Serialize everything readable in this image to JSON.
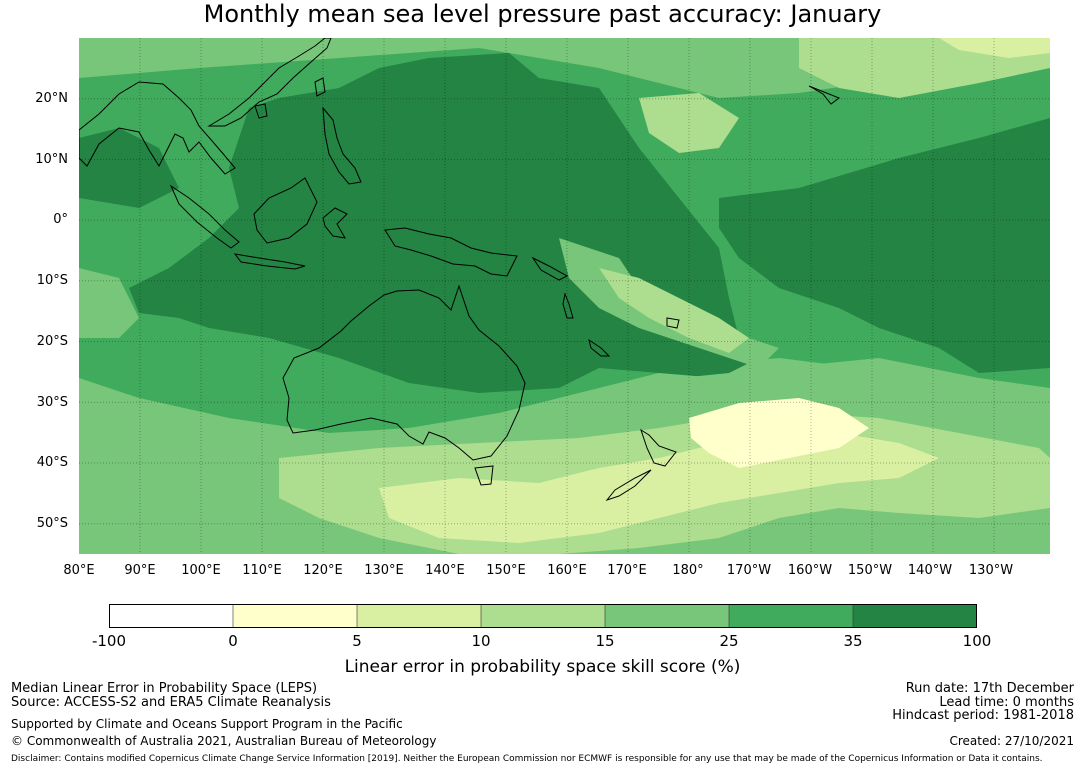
{
  "title": "Monthly mean sea level pressure past accuracy: January",
  "map": {
    "lat_labels": [
      "20°N",
      "10°N",
      "0°",
      "10°S",
      "20°S",
      "30°S",
      "40°S",
      "50°S"
    ],
    "lon_labels": [
      "80°E",
      "90°E",
      "100°E",
      "110°E",
      "120°E",
      "130°E",
      "140°E",
      "150°E",
      "160°E",
      "170°E",
      "180°",
      "170°W",
      "160°W",
      "150°W",
      "140°W",
      "130°W"
    ],
    "extent": {
      "lon_min": 80,
      "lon_max": 239,
      "lat_min": -55.5,
      "lat_max": 29.5
    }
  },
  "colorbar": {
    "ticks": [
      "-100",
      "0",
      "5",
      "10",
      "15",
      "25",
      "35",
      "100"
    ],
    "colors": [
      "#ffffff",
      "#ffffcc",
      "#d9f0a3",
      "#addd8e",
      "#78c679",
      "#41ab5d",
      "#238443"
    ],
    "label": "Linear error in probability space skill score (%)"
  },
  "footer": {
    "left_line1": "Median Linear Error in Probability Space (LEPS)",
    "left_line2": "Source: ACCESS-S2 and ERA5 Climate Reanalysis",
    "left_line3": "Supported by Climate and Oceans Support Program in the Pacific",
    "left_line4": "© Commonwealth of Australia 2021, Australian Bureau of Meteorology",
    "right_line1": "Run date: 17th December",
    "right_line2": "Lead time: 0 months",
    "right_line3": "Hindcast period: 1981-2018",
    "right_line4": "Created: 27/10/2021",
    "disclaimer": "Disclaimer: Contains modified Copernicus Climate Change Service Information [2019]. Neither the European Commission nor ECMWF is responsible for any use that may be made of the Copernicus Information or Data it contains."
  }
}
